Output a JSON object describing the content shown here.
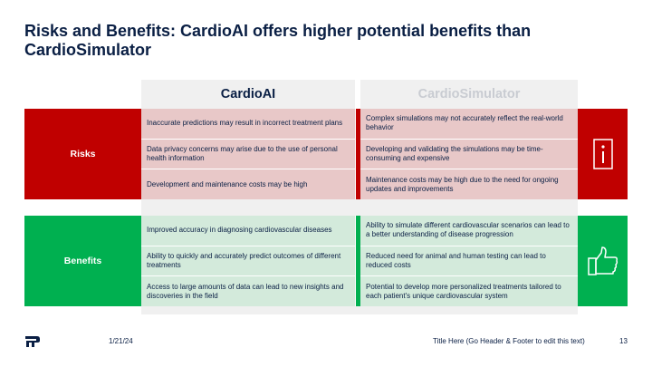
{
  "slide": {
    "title": "Risks and Benefits: CardioAI offers higher potential benefits than CardioSimulator"
  },
  "columns": {
    "left": "CardioAI",
    "right": "CardioSimulator"
  },
  "risks": {
    "label": "Risks",
    "color": "#c00000",
    "icon": "info-icon",
    "left": [
      "Inaccurate predictions may result in incorrect treatment plans",
      "Data privacy concerns may arise due to the use of personal health information",
      "Development and maintenance costs may be high"
    ],
    "right": [
      "Complex simulations may not accurately reflect the real-world behavior",
      "Developing and validating the simulations may be time-consuming and expensive",
      "Maintenance costs may be high due to the need for ongoing updates and improvements"
    ]
  },
  "benefits": {
    "label": "Benefits",
    "color": "#00b050",
    "icon": "thumbs-up-icon",
    "left": [
      "Improved accuracy in diagnosing cardiovascular diseases",
      "Ability to quickly and accurately predict outcomes of different treatments",
      "Access to large amounts of data can lead to new insights and discoveries in the field"
    ],
    "right": [
      "Ability to simulate different cardiovascular scenarios can lead to a better understanding of disease progression",
      "Reduced need for animal and human testing can lead to reduced costs",
      "Potential to develop more personalized treatments tailored to each patient's unique cardiovascular system"
    ]
  },
  "footer": {
    "logo_icon": "brand-logo-icon",
    "date": "1/21/24",
    "title": "Title Here (Go Header & Footer to edit this text)",
    "page": "13"
  }
}
